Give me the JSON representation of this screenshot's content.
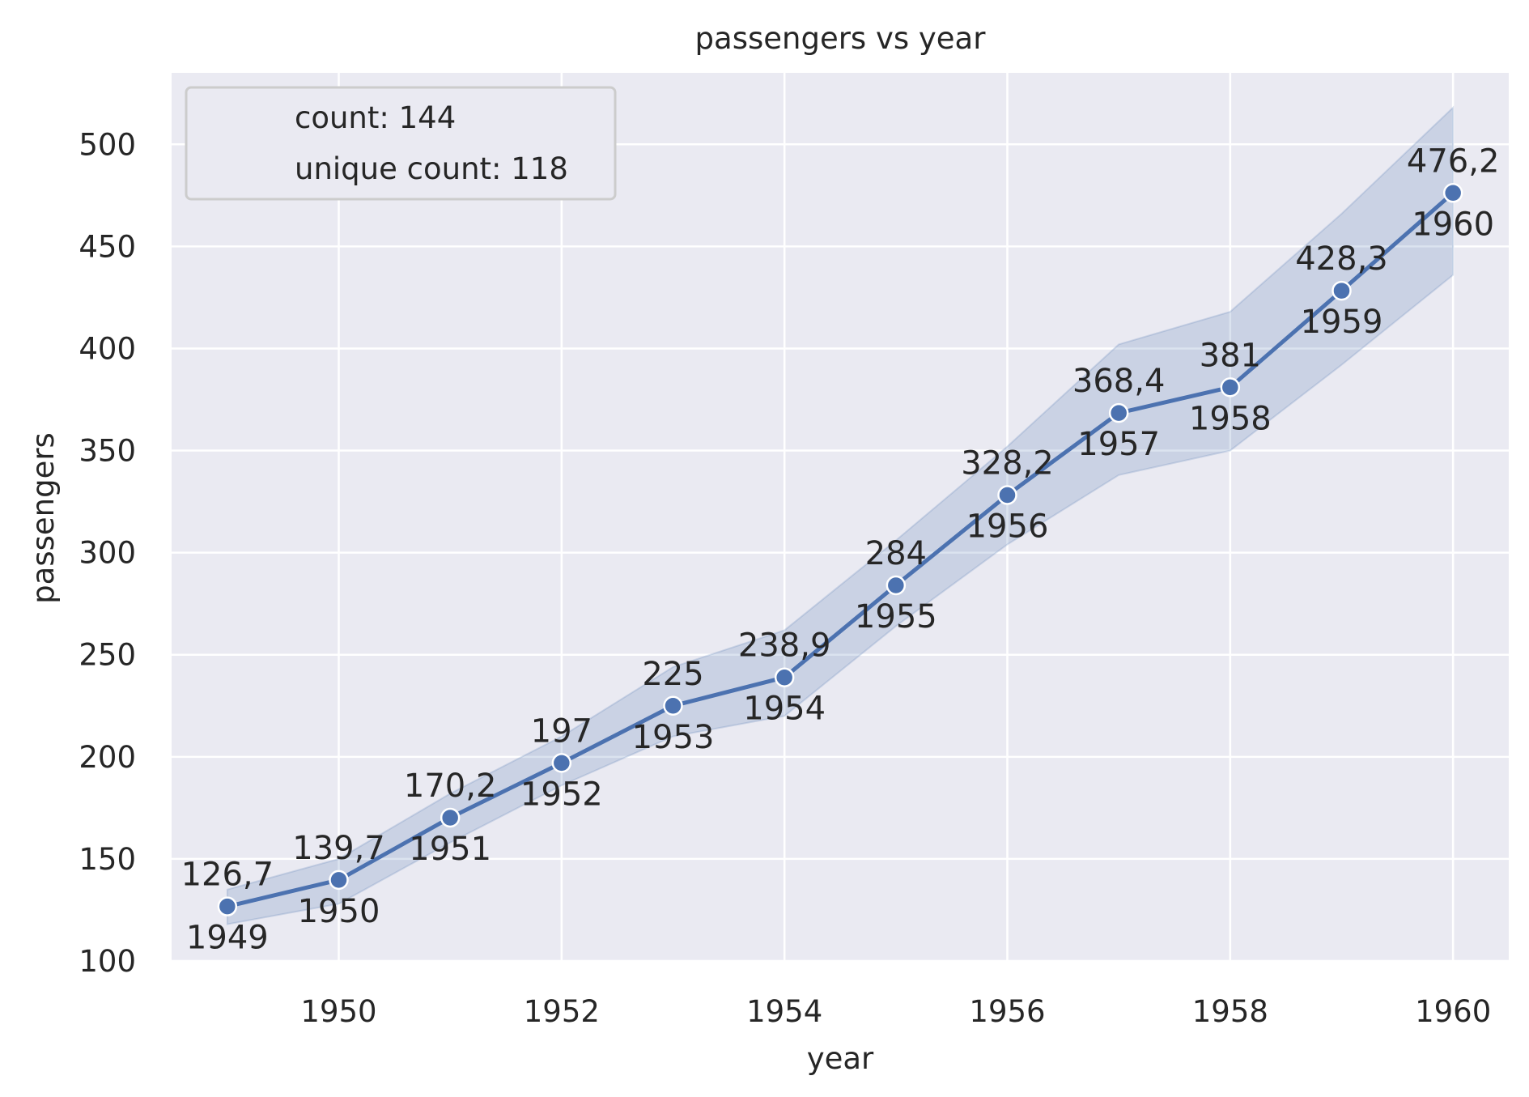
{
  "chart_data": {
    "type": "line",
    "title": "passengers vs year",
    "xlabel": "year",
    "ylabel": "passengers",
    "xlim": [
      1948.5,
      1960.5
    ],
    "ylim": [
      100,
      535
    ],
    "x_ticks": [
      1950,
      1952,
      1954,
      1956,
      1958,
      1960
    ],
    "y_ticks": [
      100,
      150,
      200,
      250,
      300,
      350,
      400,
      450,
      500
    ],
    "grid": true,
    "legend": {
      "placement": "top-left",
      "entries": [
        "count: 144",
        "unique count: 118"
      ]
    },
    "series": [
      {
        "x": [
          1949,
          1950,
          1951,
          1952,
          1953,
          1954,
          1955,
          1956,
          1957,
          1958,
          1959,
          1960
        ],
        "y": [
          126.7,
          139.7,
          170.2,
          197,
          225,
          238.9,
          284,
          328.2,
          368.4,
          381,
          428.3,
          476.2
        ],
        "ci_lower": [
          118,
          128,
          158,
          186,
          210,
          220,
          264,
          304,
          338,
          350,
          392,
          436
        ],
        "ci_upper": [
          135,
          150,
          182,
          210,
          244,
          262,
          306,
          352,
          402,
          418,
          466,
          518
        ],
        "value_labels": [
          "126,7",
          "139,7",
          "170,2",
          "197",
          "225",
          "238,9",
          "284",
          "328,2",
          "368,4",
          "381",
          "428,3",
          "476,2"
        ],
        "point_labels": [
          "1949",
          "1950",
          "1951",
          "1952",
          "1953",
          "1954",
          "1955",
          "1956",
          "1957",
          "1958",
          "1959",
          "1960"
        ]
      }
    ]
  },
  "colors": {
    "background": "#eaeaf2",
    "grid": "#ffffff",
    "line": "#4c72b0",
    "band": "#4c72b0",
    "text": "#262626"
  }
}
